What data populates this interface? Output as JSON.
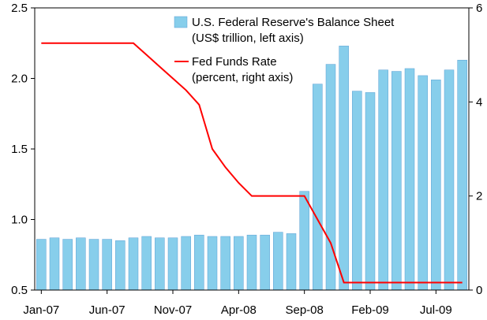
{
  "chart_data": {
    "type": "bar+line",
    "categories": [
      "Jan-07",
      "Feb-07",
      "Mar-07",
      "Apr-07",
      "May-07",
      "Jun-07",
      "Jul-07",
      "Aug-07",
      "Sep-07",
      "Oct-07",
      "Nov-07",
      "Dec-07",
      "Jan-08",
      "Feb-08",
      "Mar-08",
      "Apr-08",
      "May-08",
      "Jun-08",
      "Jul-08",
      "Aug-08",
      "Sep-08",
      "Oct-08",
      "Nov-08",
      "Dec-08",
      "Jan-09",
      "Feb-09",
      "Mar-09",
      "Apr-09",
      "May-09",
      "Jun-09",
      "Jul-09",
      "Aug-09",
      "Sep-09"
    ],
    "x_tick_labels": [
      "Jan-07",
      "Jun-07",
      "Nov-07",
      "Apr-08",
      "Sep-08",
      "Feb-09",
      "Jul-09"
    ],
    "x_tick_indices": [
      0,
      5,
      10,
      15,
      20,
      25,
      30
    ],
    "series": [
      {
        "name": "U.S. Federal Reserve's Balance Sheet",
        "name_line2": "(US$ trillion, left axis)",
        "type": "bar",
        "axis": "left",
        "color": "#87CEEB",
        "values": [
          0.86,
          0.87,
          0.86,
          0.87,
          0.86,
          0.86,
          0.85,
          0.87,
          0.88,
          0.87,
          0.87,
          0.88,
          0.89,
          0.88,
          0.88,
          0.88,
          0.89,
          0.89,
          0.91,
          0.9,
          1.2,
          1.96,
          2.1,
          2.23,
          1.91,
          1.9,
          2.06,
          2.05,
          2.07,
          2.02,
          1.99,
          2.06,
          2.13
        ]
      },
      {
        "name": "Fed Funds Rate",
        "name_line2": "(percent, right axis)",
        "type": "line",
        "axis": "right",
        "color": "#ff0000",
        "values": [
          5.25,
          5.25,
          5.25,
          5.25,
          5.25,
          5.25,
          5.25,
          5.25,
          5.0,
          4.75,
          4.5,
          4.25,
          3.94,
          3.0,
          2.61,
          2.28,
          2.0,
          2.0,
          2.0,
          2.0,
          2.0,
          1.5,
          1.0,
          0.16,
          0.16,
          0.16,
          0.16,
          0.16,
          0.16,
          0.16,
          0.16,
          0.16,
          0.16
        ]
      }
    ],
    "y_left": {
      "ylim": [
        0.5,
        2.5
      ],
      "ticks": [
        "0.5",
        "1.0",
        "1.5",
        "2.0",
        "2.5"
      ]
    },
    "y_right": {
      "ylim": [
        0,
        6
      ],
      "ticks": [
        "0",
        "2",
        "4",
        "6"
      ]
    },
    "legend_position": "top-right",
    "grid": false
  }
}
